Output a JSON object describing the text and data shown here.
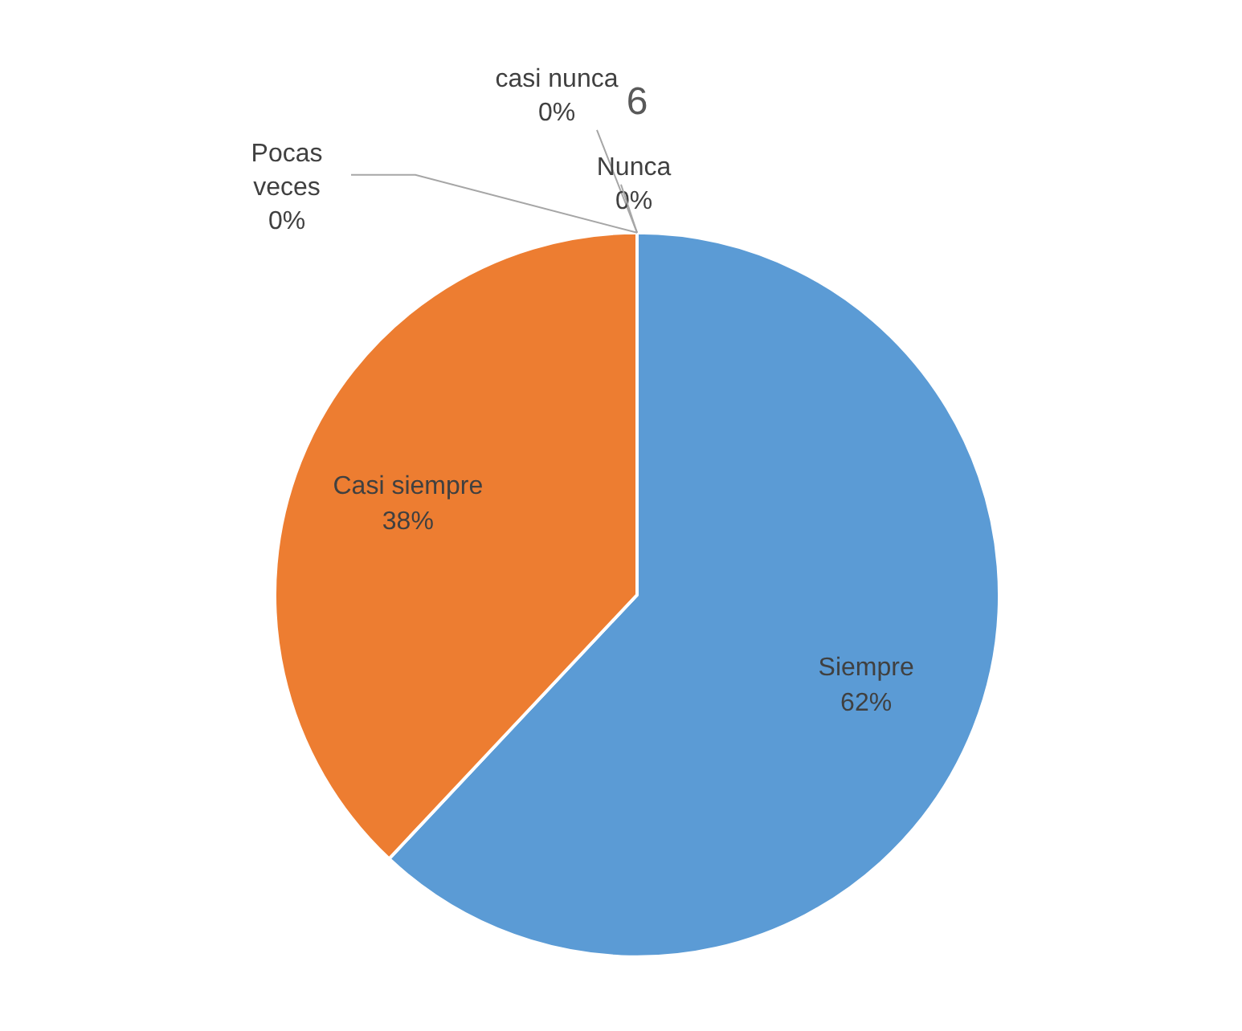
{
  "chart_data": {
    "type": "pie",
    "title": "6",
    "categories": [
      "Siempre",
      "Casi siempre",
      "Pocas veces",
      "casi nunca",
      "Nunca"
    ],
    "values": [
      62,
      38,
      0,
      0,
      0
    ],
    "colors": [
      "#5b9bd5",
      "#ed7d31",
      "#a5a5a5",
      "#ffc000",
      "#4472c4"
    ],
    "value_labels": [
      "62%",
      "38%",
      "0%",
      "0%",
      "0%"
    ],
    "legend": false
  }
}
